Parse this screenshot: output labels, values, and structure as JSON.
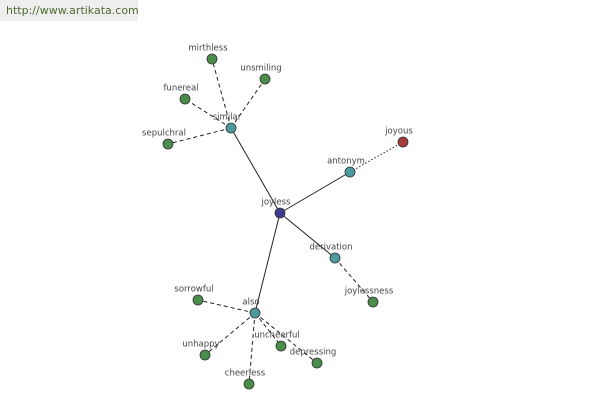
{
  "header": {
    "url": "http://www.artikata.com"
  },
  "nodes": [
    {
      "label": "joyless"
    },
    {
      "label": "similar"
    },
    {
      "label": "antonym"
    },
    {
      "label": "derivation"
    },
    {
      "label": "also"
    },
    {
      "label": "joyous"
    },
    {
      "label": "mirthless"
    },
    {
      "label": "unsmiling"
    },
    {
      "label": "funereal"
    },
    {
      "label": "sepulchral"
    },
    {
      "label": "joylessness"
    },
    {
      "label": "sorrowful"
    },
    {
      "label": "unhappy"
    },
    {
      "label": "cheerless"
    },
    {
      "label": "uncheerful"
    },
    {
      "label": "depressing"
    }
  ]
}
